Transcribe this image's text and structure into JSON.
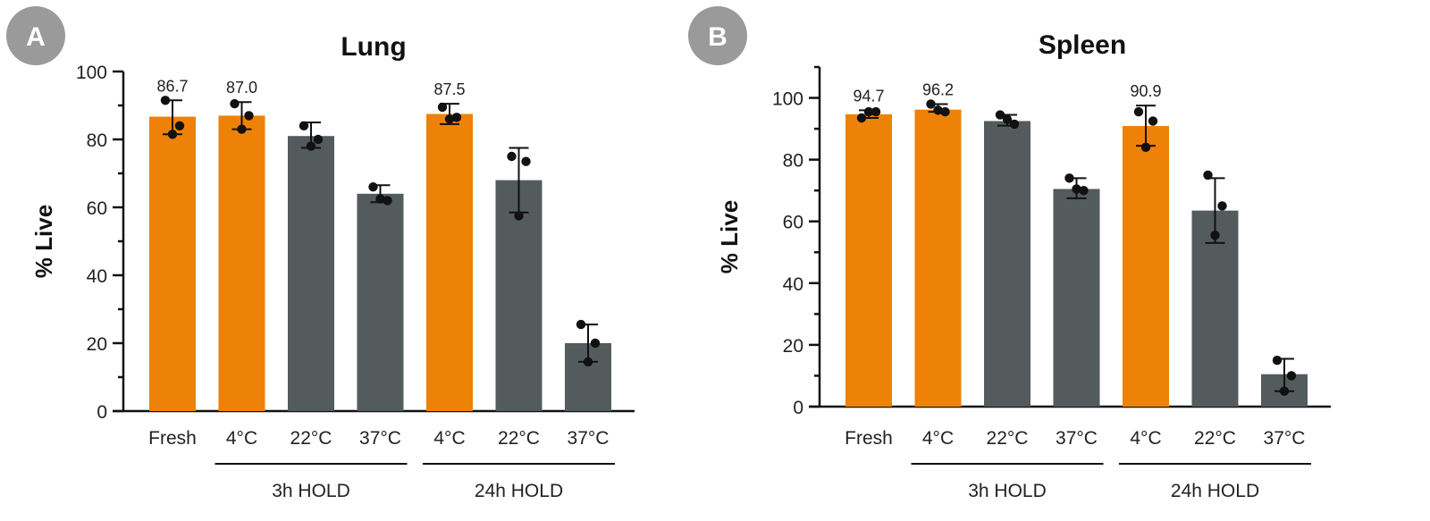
{
  "colors": {
    "orange": "#ee8208",
    "gray": "#545b5d",
    "badge": "#9a9a9a"
  },
  "chart_data": [
    {
      "panel": "A",
      "type": "bar",
      "title": "Lung",
      "ylabel": "% Live",
      "ylim": [
        0,
        100
      ],
      "yticks": [
        0,
        20,
        40,
        60,
        80,
        100
      ],
      "minor_ticks": true,
      "categories": [
        "Fresh",
        "4°C",
        "22°C",
        "37°C",
        "4°C",
        "22°C",
        "37°C"
      ],
      "groups": [
        {
          "label": "3h HOLD",
          "categories": [
            1,
            2,
            3
          ]
        },
        {
          "label": "24h HOLD",
          "categories": [
            4,
            5,
            6
          ]
        }
      ],
      "values": [
        86.7,
        87.0,
        81,
        64,
        87.5,
        68,
        20
      ],
      "error_low": [
        81.5,
        83,
        77.5,
        61.5,
        84.5,
        58.5,
        14.5
      ],
      "error_high": [
        91.5,
        91,
        85,
        66.5,
        90.5,
        77.5,
        25.5
      ],
      "points": [
        [
          91.5,
          84,
          81.5
        ],
        [
          90.5,
          87,
          83
        ],
        [
          84,
          80,
          78
        ],
        [
          66,
          62,
          62.5
        ],
        [
          89.5,
          86.5,
          86
        ],
        [
          75,
          73.5,
          57.5
        ],
        [
          25.5,
          20,
          14.5
        ]
      ],
      "data_labels": [
        "86.7",
        "87.0",
        "",
        "",
        "87.5",
        "",
        ""
      ],
      "bar_colors": [
        "orange",
        "orange",
        "gray",
        "gray",
        "orange",
        "gray",
        "gray"
      ]
    },
    {
      "panel": "B",
      "type": "bar",
      "title": "Spleen",
      "ylabel": "% Live",
      "ylim": [
        0,
        110
      ],
      "yticks": [
        0,
        20,
        40,
        60,
        80,
        100
      ],
      "minor_ticks": true,
      "categories": [
        "Fresh",
        "4°C",
        "22°C",
        "37°C",
        "4°C",
        "22°C",
        "37°C"
      ],
      "groups": [
        {
          "label": "3h HOLD",
          "categories": [
            1,
            2,
            3
          ]
        },
        {
          "label": "24h HOLD",
          "categories": [
            4,
            5,
            6
          ]
        }
      ],
      "values": [
        94.7,
        96.2,
        92.5,
        70.5,
        90.9,
        63.5,
        10.5
      ],
      "error_low": [
        93.5,
        95.5,
        91,
        67.5,
        84.5,
        53,
        5
      ],
      "error_high": [
        96,
        98,
        94.5,
        74,
        97.5,
        74,
        15.5
      ],
      "points": [
        [
          93.5,
          95.5,
          95.5
        ],
        [
          98,
          95.5,
          96
        ],
        [
          94.5,
          91.5,
          93
        ],
        [
          74,
          70,
          70.5
        ],
        [
          95.5,
          92.5,
          84
        ],
        [
          75,
          65,
          55.5
        ],
        [
          15,
          10,
          5
        ]
      ],
      "data_labels": [
        "94.7",
        "96.2",
        "",
        "",
        "90.9",
        "",
        ""
      ],
      "bar_colors": [
        "orange",
        "orange",
        "gray",
        "gray",
        "orange",
        "gray",
        "gray"
      ]
    }
  ]
}
